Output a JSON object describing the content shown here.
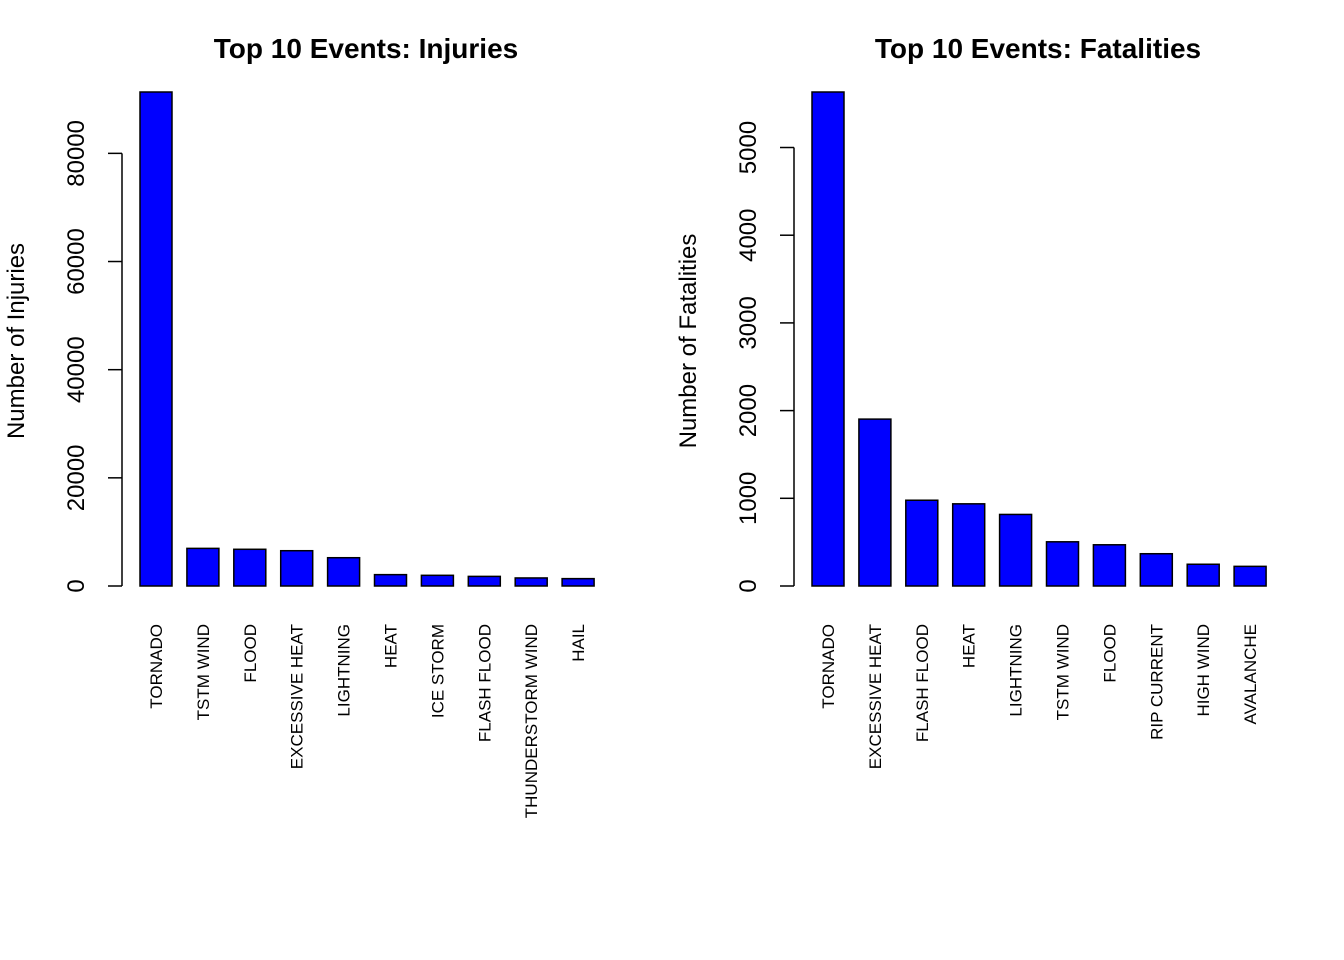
{
  "chart_data": [
    {
      "type": "bar",
      "title": "Top 10 Events: Injuries",
      "ylabel": "Number of Injuries",
      "xlabel": "",
      "categories": [
        "TORNADO",
        "TSTM WIND",
        "FLOOD",
        "EXCESSIVE HEAT",
        "LIGHTNING",
        "HEAT",
        "ICE STORM",
        "FLASH FLOOD",
        "THUNDERSTORM WIND",
        "HAIL"
      ],
      "values": [
        91346,
        6957,
        6789,
        6525,
        5230,
        2100,
        1975,
        1777,
        1488,
        1361
      ],
      "ylim": [
        0,
        91346
      ],
      "yticks": [
        0,
        20000,
        40000,
        60000,
        80000
      ],
      "bar_color": "#0000ff",
      "grid": false,
      "legend": "none"
    },
    {
      "type": "bar",
      "title": "Top 10 Events: Fatalities",
      "ylabel": "Number of Fatalities",
      "xlabel": "",
      "categories": [
        "TORNADO",
        "EXCESSIVE HEAT",
        "FLASH FLOOD",
        "HEAT",
        "LIGHTNING",
        "TSTM WIND",
        "FLOOD",
        "RIP CURRENT",
        "HIGH WIND",
        "AVALANCHE"
      ],
      "values": [
        5633,
        1903,
        978,
        937,
        816,
        504,
        470,
        368,
        248,
        224
      ],
      "ylim": [
        0,
        5633
      ],
      "yticks": [
        0,
        1000,
        2000,
        3000,
        4000,
        5000
      ],
      "bar_color": "#0000ff",
      "grid": false,
      "legend": "none"
    }
  ]
}
